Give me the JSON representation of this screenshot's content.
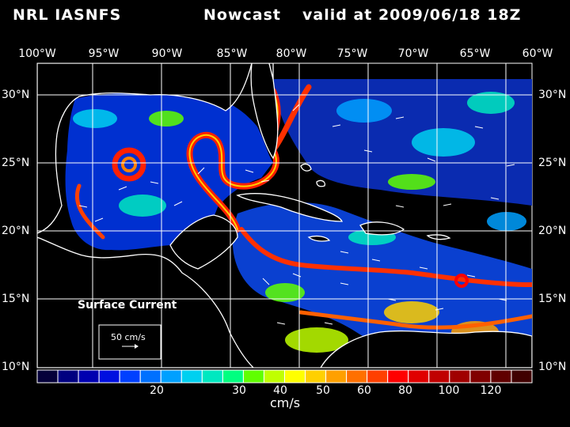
{
  "title": {
    "source": "NRL IASNFS",
    "product": "Nowcast",
    "valid": "valid at 2009/06/18 18Z"
  },
  "map": {
    "lon_labels": [
      "100°W",
      "95°W",
      "90°W",
      "85°W",
      "80°W",
      "75°W",
      "70°W",
      "65°W",
      "60°W"
    ],
    "lat_labels": [
      "30°N",
      "25°N",
      "20°N",
      "15°N",
      "10°N"
    ],
    "legend_title": "Surface Current",
    "scale_label": "50 cm/s"
  },
  "colorbar": {
    "tick_labels": [
      "20",
      "30",
      "40",
      "50",
      "60",
      "80",
      "100",
      "120"
    ],
    "units": "cm/s",
    "colors": [
      "#05003a",
      "#000080",
      "#0000b0",
      "#0010e0",
      "#0040ff",
      "#0070ff",
      "#00a0ff",
      "#00d0f0",
      "#00e8c0",
      "#00ff80",
      "#60ff00",
      "#c0ff00",
      "#ffff00",
      "#ffd000",
      "#ffa000",
      "#ff7000",
      "#ff4000",
      "#ff0000",
      "#e00000",
      "#c00000",
      "#a00000",
      "#800000",
      "#600000",
      "#400000"
    ]
  }
}
